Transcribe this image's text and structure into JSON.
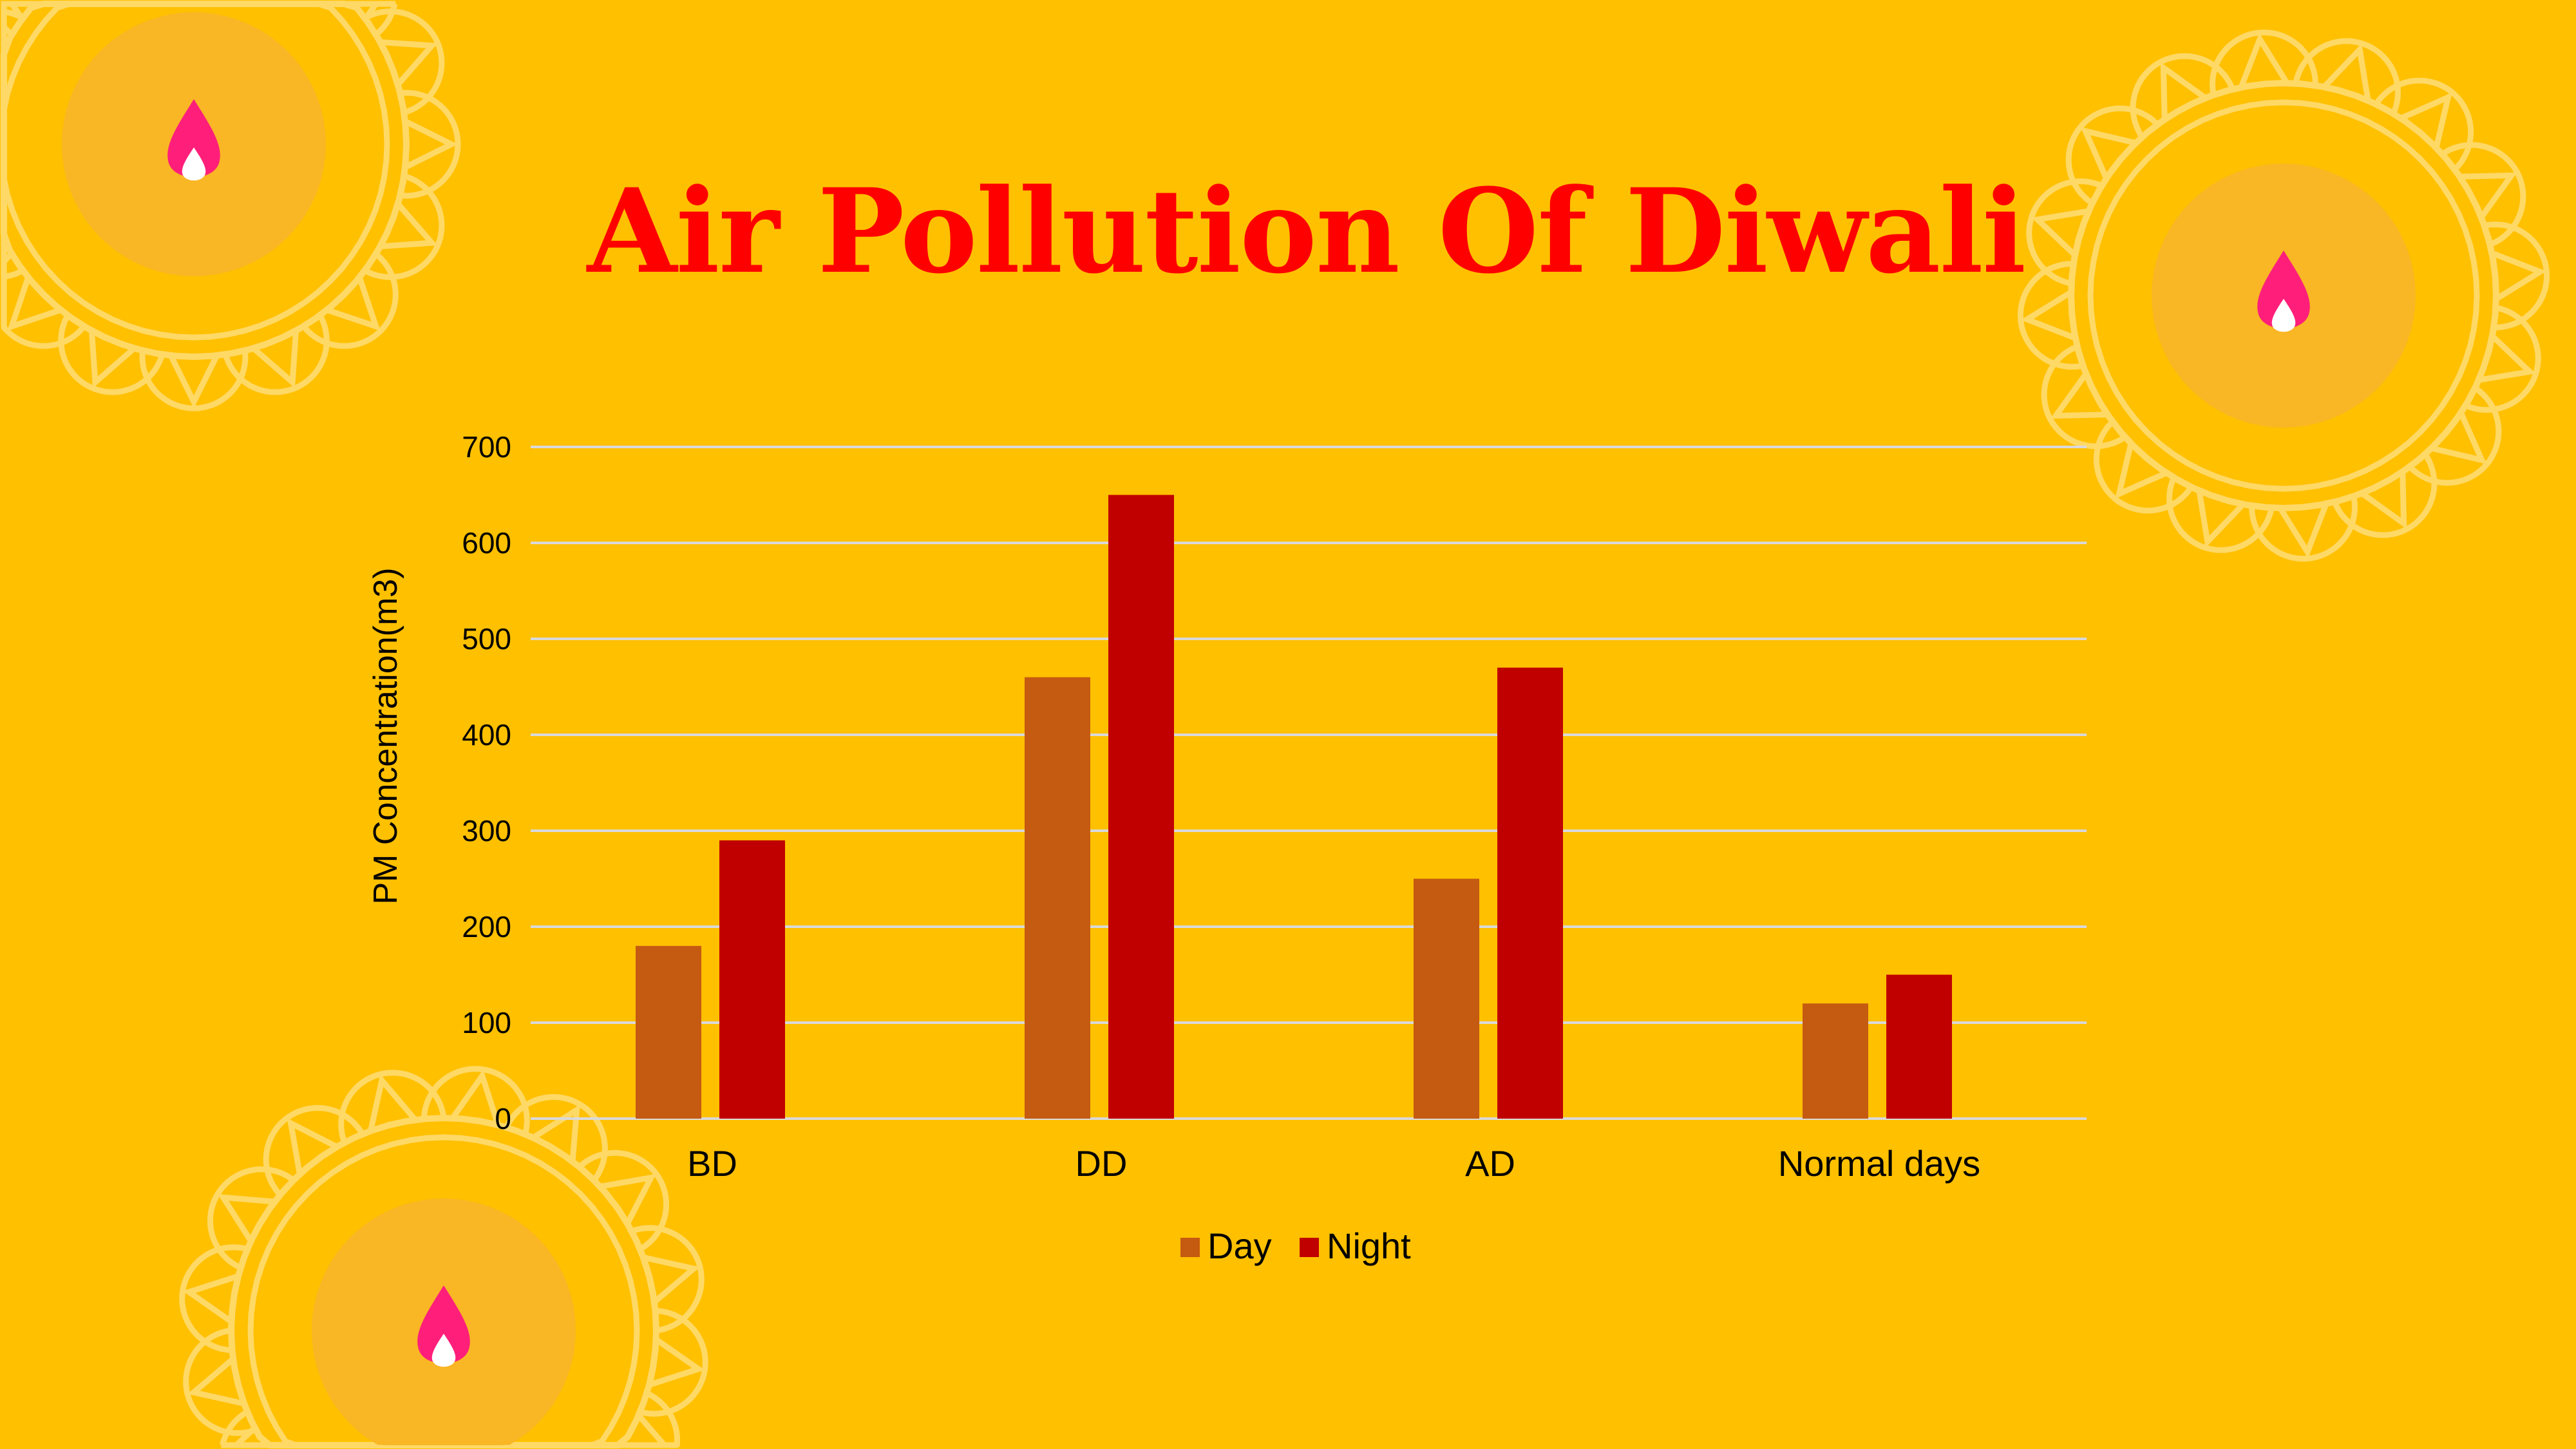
{
  "slide": {
    "title": "Air Pollution Of Diwali"
  },
  "colors": {
    "background": "#FFC000",
    "day": "#C55A11",
    "night": "#C00000",
    "title": "#FF0000",
    "mandala": "#FFD966",
    "mandala_inner": "#F9B625",
    "flame": "#FF1F7A"
  },
  "chart_data": {
    "type": "bar",
    "title": "",
    "categories": [
      "BD",
      "DD",
      "AD",
      "Normal days"
    ],
    "series": [
      {
        "name": "Day",
        "values": [
          180,
          460,
          250,
          120
        ]
      },
      {
        "name": "Night",
        "values": [
          290,
          650,
          470,
          150
        ]
      }
    ],
    "xlabel": "",
    "ylabel": "PM Concentration(m3)",
    "ylim": [
      0,
      700
    ],
    "yticks": [
      0,
      100,
      200,
      300,
      400,
      500,
      600,
      700
    ],
    "grid": true,
    "legend": "bottom"
  }
}
